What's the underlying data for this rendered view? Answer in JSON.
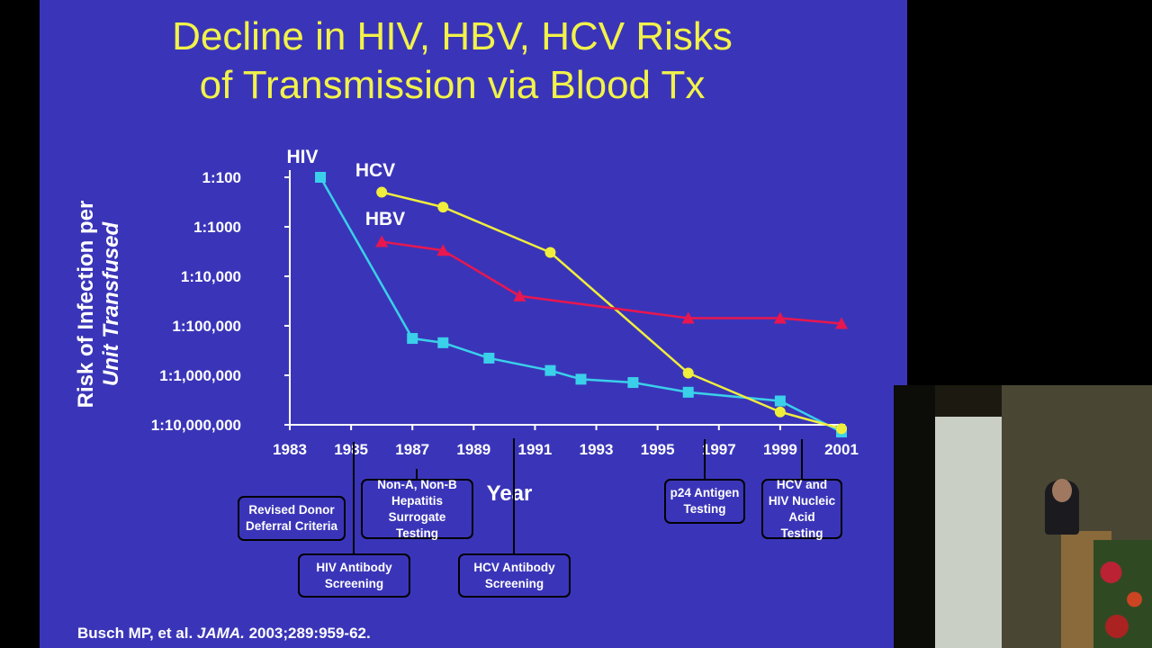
{
  "slide": {
    "title": [
      "Decline in HIV, HBV, HCV Risks",
      "of Transmission via Blood Tx"
    ],
    "citation": {
      "authors": "Busch MP, et al.",
      "journal": "JAMA.",
      "ref": "2003;289:959-62."
    }
  },
  "chart_data": {
    "type": "line",
    "title": "Decline in HIV, HBV, HCV Risks of Transmission via Blood Tx",
    "xlabel": "Year",
    "ylabel": [
      "Risk of Infection per",
      "Unit Transfused"
    ],
    "y_scale": "log",
    "y_ticks": [
      "1:100",
      "1:1000",
      "1:10,000",
      "1:100,000",
      "1:1,000,000",
      "1:10,000,000"
    ],
    "x_ticks": [
      "1983",
      "1985",
      "1987",
      "1989",
      "1991",
      "1993",
      "1995",
      "1997",
      "1999",
      "2001"
    ],
    "xlim": [
      1983,
      2001
    ],
    "ylim_reciprocal": [
      100,
      10000000
    ],
    "series": [
      {
        "name": "HIV",
        "color": "#3ad0ea",
        "marker": "square",
        "points": [
          [
            1984,
            100
          ],
          [
            1987,
            180000
          ],
          [
            1988,
            220000
          ],
          [
            1989.5,
            450000
          ],
          [
            1991.5,
            800000
          ],
          [
            1992.5,
            1200000
          ],
          [
            1994.2,
            1400000
          ],
          [
            1996,
            2200000
          ],
          [
            1999,
            3300000
          ],
          [
            2001,
            14000000
          ]
        ]
      },
      {
        "name": "HCV",
        "color": "#f0ee3c",
        "marker": "circle",
        "points": [
          [
            1986,
            200
          ],
          [
            1988,
            400
          ],
          [
            1991.5,
            3300
          ],
          [
            1996,
            900000
          ],
          [
            1999,
            5500000
          ],
          [
            2001,
            12000000
          ]
        ]
      },
      {
        "name": "HBV",
        "color": "#e8174f",
        "marker": "triangle",
        "points": [
          [
            1986,
            2000
          ],
          [
            1988,
            3000
          ],
          [
            1990.5,
            25000
          ],
          [
            1996,
            70000
          ],
          [
            1999,
            70000
          ],
          [
            2001,
            90000
          ]
        ]
      }
    ],
    "milestones": [
      {
        "label": "Revised Donor Deferral Criteria",
        "year": 1985.3
      },
      {
        "label": "HIV Antibody Screening",
        "year": 1985.3
      },
      {
        "label": "Non-A, Non-B Hepatitis Surrogate Testing",
        "year": 1987.2
      },
      {
        "label": "HCV Antibody Screening",
        "year": 1990.9
      },
      {
        "label": "p24 Antigen Testing",
        "year": 1996.6
      },
      {
        "label": "HCV and HIV Nucleic Acid Testing",
        "year": 1999.5
      }
    ]
  },
  "video": {
    "description_icon": "speaker-video-icon"
  }
}
